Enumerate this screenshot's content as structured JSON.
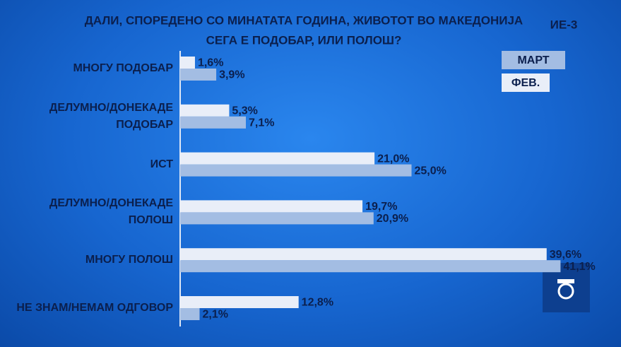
{
  "chart_data": {
    "type": "hbar",
    "title": [
      "ДАЛИ, СПОРЕДЕНО СО МИНАТАТА ГОДИНА, ЖИВОТОТ ВО МАКЕДОНИЈА",
      "СЕГА Е ПОДОБАР, ИЛИ ПОЛОШ?"
    ],
    "corner_label": "ИЕ-3",
    "categories": [
      "МНОГУ ПОДОБАР",
      "ДЕЛУМНО/ДОНЕКАДЕ\nПОДОБАР",
      "ИСТ",
      "ДЕЛУМНО/ДОНЕКАДЕ\nПОЛОШ",
      "МНОГУ ПОЛОШ",
      "НЕ ЗНАМ/НЕМАМ ОДГОВОР"
    ],
    "series": [
      {
        "name": "МАРТ",
        "color": "#a3bde3",
        "values": [
          3.9,
          7.1,
          25.0,
          20.9,
          41.1,
          2.1
        ],
        "value_labels": [
          "3,9%",
          "7,1%",
          "25,0%",
          "20,9%",
          "41,1%",
          "2,1%"
        ]
      },
      {
        "name": "ФЕВ.",
        "color": "#e9eef8",
        "values": [
          1.6,
          5.3,
          21.0,
          19.7,
          39.6,
          12.8
        ],
        "value_labels": [
          "1,6%",
          "5,3%",
          "21,0%",
          "19,7%",
          "39,6%",
          "12,8%"
        ]
      }
    ]
  }
}
